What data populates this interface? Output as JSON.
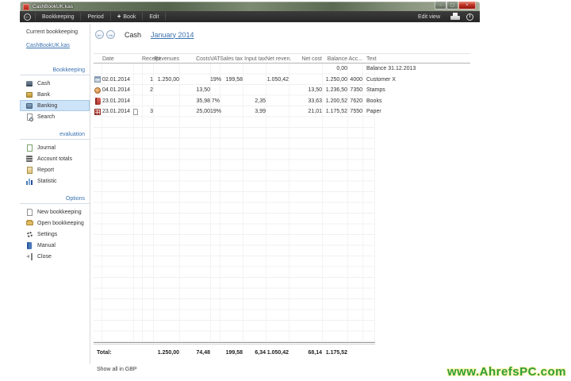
{
  "window": {
    "title": "CashBookUK.kas"
  },
  "icons": {
    "back": "←",
    "prev": "←",
    "next": "→",
    "plus": "+",
    "info": "i",
    "minimize": "–",
    "maximize": "▢",
    "close": "×"
  },
  "toolbar": {
    "menu": [
      "Bookkeeping",
      "Period",
      "Book",
      "Edit"
    ],
    "edit_view": "Edit view"
  },
  "sidebar": {
    "current_label": "Current bookkeeping",
    "current_file": "CashBookUK.kas",
    "sections": [
      {
        "title": "Bookkeeping",
        "items": [
          {
            "label": "Cash"
          },
          {
            "label": "Bank"
          },
          {
            "label": "Banking",
            "selected": true
          },
          {
            "label": "Search"
          }
        ]
      },
      {
        "title": "evaluation",
        "items": [
          {
            "label": "Journal"
          },
          {
            "label": "Account totals"
          },
          {
            "label": "Report"
          },
          {
            "label": "Statistic"
          }
        ]
      },
      {
        "title": "Options",
        "items": [
          {
            "label": "New bookkeeping"
          },
          {
            "label": "Open bookkeeping"
          },
          {
            "label": "Settings"
          },
          {
            "label": "Manual"
          },
          {
            "label": "Close"
          }
        ]
      }
    ]
  },
  "main": {
    "nav": {
      "book": "Cash",
      "period": "January 2014"
    },
    "table": {
      "columns": [
        "Date",
        "Receipt",
        "Revenues",
        "Costs",
        "VAT",
        "Sales tax",
        "Input tax",
        "Net reven.",
        "Net cost",
        "Balance",
        "Acc...",
        "Text"
      ],
      "rows": [
        {
          "icon": "",
          "date": "",
          "receipt": "",
          "revenues": "",
          "costs": "",
          "vat": "",
          "sales_tax": "",
          "input_tax": "",
          "net_revenues": "",
          "net_cost": "",
          "balance": "0,00",
          "acc": "",
          "text": "Balance 31.12.2013"
        },
        {
          "icon": "ledger",
          "date": "02.01.2014",
          "receipt": "1",
          "revenues": "1.250,00",
          "costs": "",
          "vat": "19%",
          "sales_tax": "199,58",
          "input_tax": "",
          "net_revenues": "1.050,42",
          "net_cost": "",
          "balance": "1.250,00",
          "acc": "4000",
          "text": "Customer X"
        },
        {
          "icon": "stamp",
          "date": "04.01.2014",
          "receipt": "2",
          "revenues": "",
          "costs": "13,50",
          "vat": "",
          "sales_tax": "",
          "input_tax": "",
          "net_revenues": "",
          "net_cost": "13,50",
          "balance": "1.236,50",
          "acc": "7350",
          "text": "Stamps"
        },
        {
          "icon": "book",
          "date": "23.01.2014",
          "receipt": "",
          "revenues": "",
          "costs": "35,98",
          "vat": "7%",
          "sales_tax": "",
          "input_tax": "2,35",
          "net_revenues": "",
          "net_cost": "33,63",
          "balance": "1.200,52",
          "acc": "7620",
          "text": "Books"
        },
        {
          "icon": "calc",
          "date": "23.01.2014",
          "attachment": true,
          "receipt": "3",
          "revenues": "",
          "costs": "25,00",
          "vat": "19%",
          "sales_tax": "",
          "input_tax": "3,99",
          "net_revenues": "",
          "net_cost": "21,01",
          "balance": "1.175,52",
          "acc": "7550",
          "text": "Paper"
        }
      ],
      "total": {
        "label": "Total:",
        "revenues": "1.250,00",
        "costs": "74,48",
        "sales_tax": "199,58",
        "input_tax": "6,34",
        "net_revenues": "1.050,42",
        "net_cost": "68,14",
        "balance": "1.175,52"
      },
      "footer_link": "Show all in GBP"
    }
  },
  "watermark": "www.AhrefsPC.com"
}
